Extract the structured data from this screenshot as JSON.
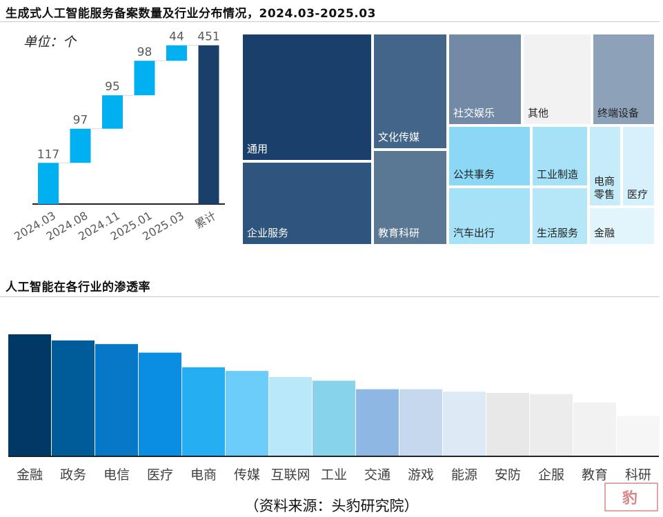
{
  "header": {
    "title": "生成式人工智能服务备案数量及行业分布情况，2024.03-2025.03",
    "subtitle": "人工智能在各行业的渗透率"
  },
  "source_note": "（资料来源：头豹研究院）",
  "watermark": "头豹",
  "chart_data": [
    {
      "type": "bar",
      "subtype": "waterfall",
      "unit_label": "单位：个",
      "categories": [
        "2024.03",
        "2024.08",
        "2024.11",
        "2025.01",
        "2025.03",
        "累计"
      ],
      "increments": [
        117,
        97,
        95,
        98,
        44
      ],
      "total": 451,
      "value_labels": [
        "117",
        "97",
        "95",
        "98",
        "44",
        "451"
      ],
      "ylim": [
        0,
        470
      ],
      "colors": {
        "increment": "#00b0f0",
        "total": "#1b3f6b"
      },
      "grid": false,
      "legend": "none"
    },
    {
      "type": "treemap",
      "cells": [
        {
          "label": "通用",
          "color": "#1b3f6b",
          "text_color": "#ffffff"
        },
        {
          "label": "企业服务",
          "color": "#2e557d",
          "text_color": "#ffffff"
        },
        {
          "label": "文化传媒",
          "color": "#44658a",
          "text_color": "#ffffff"
        },
        {
          "label": "教育科研",
          "color": "#5a7894",
          "text_color": "#ffffff"
        },
        {
          "label": "社交娱乐",
          "color": "#728aa5",
          "text_color": "#ffffff"
        },
        {
          "label": "其他",
          "color": "#f2f2f2",
          "text_color": "#222222"
        },
        {
          "label": "终端设备",
          "color": "#8da2b8",
          "text_color": "#222222"
        },
        {
          "label": "公共事务",
          "color": "#8ad8f5",
          "text_color": "#222222"
        },
        {
          "label": "工业制造",
          "color": "#a5e1f7",
          "text_color": "#222222"
        },
        {
          "label": "汽车出行",
          "color": "#a5e1f7",
          "text_color": "#222222"
        },
        {
          "label": "生活服务",
          "color": "#b6e7f8",
          "text_color": "#222222"
        },
        {
          "label": "电商\n零售",
          "color": "#c6ecfa",
          "text_color": "#222222"
        },
        {
          "label": "医疗",
          "color": "#d6f1fb",
          "text_color": "#222222"
        },
        {
          "label": "金融",
          "color": "#e2f5fc",
          "text_color": "#222222"
        }
      ]
    },
    {
      "type": "bar",
      "categories": [
        "金融",
        "政务",
        "电信",
        "医疗",
        "电商",
        "传媒",
        "互联网",
        "工业",
        "交通",
        "游戏",
        "能源",
        "安防",
        "企服",
        "教育",
        "科研"
      ],
      "values": [
        100,
        95,
        92,
        85,
        73,
        70,
        65,
        62,
        55,
        55,
        53,
        52,
        51,
        44,
        33
      ],
      "value_note": "relative bar heights, no axis printed",
      "ylim": [
        0,
        100
      ],
      "colors": [
        "#003966",
        "#005b99",
        "#0778c8",
        "#0a8ee4",
        "#26aef3",
        "#6ccdfa",
        "#b9e8fa",
        "#87d3eb",
        "#8eb8e3",
        "#c5d8ee",
        "#dde9f5",
        "#e8e8e8",
        "#ececec",
        "#f2f2f2",
        "#f6f6f6"
      ],
      "grid": false,
      "legend": "none"
    }
  ]
}
